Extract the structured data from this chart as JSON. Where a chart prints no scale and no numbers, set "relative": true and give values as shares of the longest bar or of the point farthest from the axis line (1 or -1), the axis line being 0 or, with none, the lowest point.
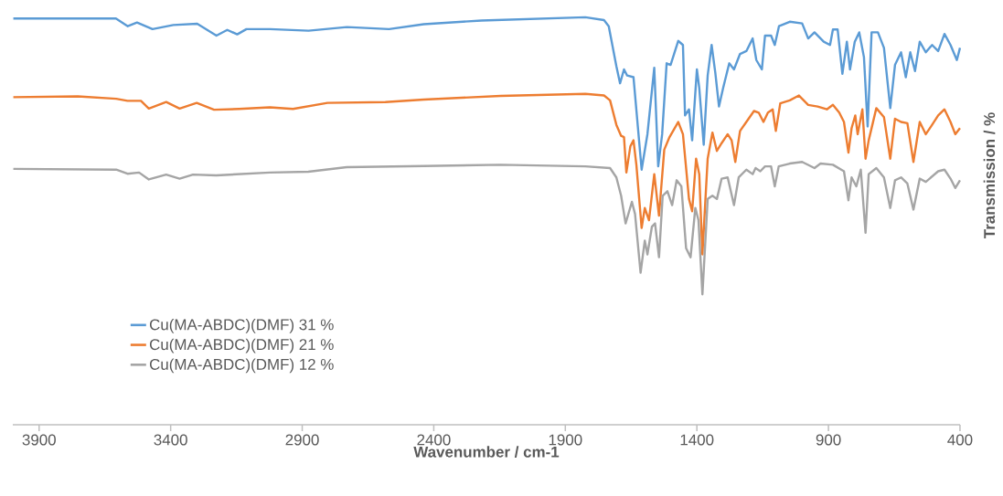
{
  "chart_data": {
    "type": "line",
    "relative": true,
    "xlabel": "Wavenumber / cm-1",
    "ylabel": "Transmission / %",
    "xlim": [
      4000,
      400
    ],
    "xticks": [
      3900,
      3400,
      2900,
      2400,
      1900,
      1400,
      900,
      400
    ],
    "grid": false,
    "legend": "bottom left",
    "marker": "none",
    "line_style": "solid",
    "series": [
      {
        "name": "Cu(MA-ABDC)(DMF) 31 %",
        "color": "#5b9bd5",
        "x": [
          3998,
          3608,
          3563,
          3528,
          3469,
          3390,
          3299,
          3226,
          3185,
          3147,
          3112,
          3022,
          2876,
          2730,
          2570,
          2438,
          2219,
          1824,
          1753,
          1735,
          1706,
          1692,
          1677,
          1665,
          1641,
          1610,
          1588,
          1562,
          1547,
          1532,
          1515,
          1500,
          1471,
          1453,
          1445,
          1430,
          1418,
          1400,
          1391,
          1374,
          1359,
          1344,
          1330,
          1316,
          1300,
          1277,
          1259,
          1236,
          1212,
          1188,
          1174,
          1153,
          1141,
          1118,
          1104,
          1088,
          1047,
          1000,
          977,
          953,
          918,
          894,
          883,
          865,
          847,
          830,
          818,
          800,
          783,
          765,
          751,
          736,
          712,
          689,
          665,
          647,
          624,
          606,
          589,
          571,
          553,
          530,
          506,
          483,
          459,
          436,
          412,
          400
        ],
        "values": [
          0.997,
          0.997,
          0.978,
          0.987,
          0.971,
          0.981,
          0.984,
          0.955,
          0.969,
          0.958,
          0.971,
          0.971,
          0.967,
          0.976,
          0.971,
          0.983,
          0.992,
          1.0,
          0.993,
          0.978,
          0.88,
          0.838,
          0.872,
          0.857,
          0.853,
          0.626,
          0.713,
          0.876,
          0.634,
          0.713,
          0.887,
          0.883,
          0.942,
          0.932,
          0.759,
          0.774,
          0.698,
          0.872,
          0.827,
          0.687,
          0.857,
          0.932,
          0.864,
          0.781,
          0.827,
          0.887,
          0.872,
          0.91,
          0.917,
          0.948,
          0.895,
          0.872,
          0.955,
          0.955,
          0.932,
          0.978,
          0.989,
          0.985,
          0.948,
          0.963,
          0.94,
          0.932,
          0.97,
          0.97,
          0.861,
          0.94,
          0.872,
          0.94,
          0.963,
          0.902,
          0.732,
          0.963,
          0.963,
          0.925,
          0.777,
          0.883,
          0.914,
          0.853,
          0.914,
          0.868,
          0.94,
          0.914,
          0.932,
          0.917,
          0.959,
          0.932,
          0.895,
          0.925
        ]
      },
      {
        "name": "Cu(MA-ABDC)(DMF) 21 %",
        "color": "#ed7d31",
        "x": [
          3998,
          3753,
          3607,
          3564,
          3513,
          3483,
          3417,
          3366,
          3301,
          3235,
          3140,
          3023,
          2935,
          2804,
          2584,
          2438,
          2146,
          1824,
          1753,
          1730,
          1706,
          1688,
          1677,
          1668,
          1653,
          1641,
          1630,
          1610,
          1598,
          1582,
          1562,
          1544,
          1524,
          1504,
          1471,
          1453,
          1430,
          1418,
          1403,
          1391,
          1379,
          1359,
          1341,
          1324,
          1306,
          1283,
          1268,
          1254,
          1236,
          1212,
          1183,
          1165,
          1147,
          1130,
          1112,
          1100,
          1083,
          1047,
          1012,
          977,
          941,
          906,
          883,
          859,
          841,
          824,
          812,
          798,
          789,
          771,
          759,
          747,
          718,
          689,
          665,
          647,
          624,
          600,
          577,
          553,
          530,
          506,
          483,
          459,
          436,
          418,
          400
        ],
        "values": [
          0.804,
          0.806,
          0.8,
          0.795,
          0.795,
          0.776,
          0.792,
          0.776,
          0.79,
          0.773,
          0.775,
          0.779,
          0.775,
          0.79,
          0.792,
          0.798,
          0.807,
          0.812,
          0.808,
          0.796,
          0.736,
          0.709,
          0.706,
          0.619,
          0.683,
          0.698,
          0.638,
          0.483,
          0.532,
          0.502,
          0.615,
          0.513,
          0.675,
          0.706,
          0.743,
          0.713,
          0.554,
          0.524,
          0.653,
          0.615,
          0.418,
          0.653,
          0.717,
          0.672,
          0.691,
          0.713,
          0.698,
          0.645,
          0.721,
          0.743,
          0.77,
          0.766,
          0.743,
          0.766,
          0.774,
          0.721,
          0.789,
          0.796,
          0.808,
          0.785,
          0.781,
          0.774,
          0.785,
          0.766,
          0.743,
          0.668,
          0.728,
          0.759,
          0.713,
          0.774,
          0.653,
          0.698,
          0.777,
          0.755,
          0.653,
          0.751,
          0.743,
          0.74,
          0.645,
          0.743,
          0.713,
          0.736,
          0.759,
          0.774,
          0.743,
          0.713,
          0.728
        ]
      },
      {
        "name": "Cu(MA-ABDC)(DMF) 12 %",
        "color": "#a5a5a5",
        "x": [
          3998,
          3607,
          3564,
          3520,
          3483,
          3417,
          3366,
          3315,
          3227,
          3023,
          2877,
          2731,
          2438,
          2146,
          1824,
          1730,
          1706,
          1688,
          1671,
          1647,
          1635,
          1614,
          1598,
          1588,
          1571,
          1559,
          1544,
          1530,
          1512,
          1494,
          1477,
          1459,
          1441,
          1424,
          1406,
          1394,
          1379,
          1359,
          1341,
          1324,
          1306,
          1283,
          1259,
          1241,
          1212,
          1188,
          1177,
          1159,
          1141,
          1118,
          1104,
          1089,
          1047,
          1000,
          953,
          930,
          883,
          841,
          824,
          812,
          794,
          777,
          759,
          747,
          718,
          689,
          665,
          647,
          624,
          600,
          577,
          553,
          530,
          483,
          459,
          436,
          418,
          400
        ],
        "values": [
          0.628,
          0.626,
          0.616,
          0.619,
          0.602,
          0.614,
          0.604,
          0.614,
          0.612,
          0.619,
          0.621,
          0.632,
          0.635,
          0.638,
          0.634,
          0.63,
          0.607,
          0.562,
          0.494,
          0.547,
          0.517,
          0.373,
          0.452,
          0.418,
          0.486,
          0.494,
          0.411,
          0.562,
          0.573,
          0.539,
          0.6,
          0.585,
          0.433,
          0.411,
          0.532,
          0.502,
          0.32,
          0.554,
          0.562,
          0.554,
          0.604,
          0.607,
          0.539,
          0.607,
          0.626,
          0.615,
          0.63,
          0.622,
          0.634,
          0.634,
          0.585,
          0.634,
          0.641,
          0.645,
          0.63,
          0.641,
          0.638,
          0.622,
          0.551,
          0.607,
          0.585,
          0.626,
          0.471,
          0.615,
          0.63,
          0.607,
          0.532,
          0.6,
          0.607,
          0.592,
          0.528,
          0.604,
          0.596,
          0.622,
          0.626,
          0.604,
          0.581,
          0.6
        ]
      }
    ]
  }
}
